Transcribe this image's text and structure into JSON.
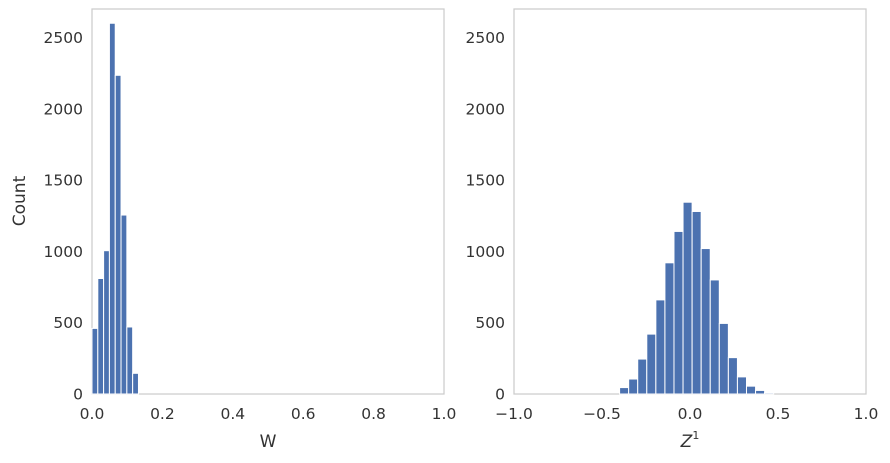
{
  "chart_data": [
    {
      "type": "bar",
      "subtype": "histogram",
      "xlabel": "W",
      "ylabel": "Count",
      "xlim": [
        0,
        1.0
      ],
      "ylim": [
        0,
        2700
      ],
      "xticks": [
        "0.0",
        "0.2",
        "0.4",
        "0.6",
        "0.8",
        "1.0"
      ],
      "yticks": [
        "0",
        "500",
        "1000",
        "1500",
        "2000",
        "2500"
      ],
      "grid": false,
      "color": "#4c72b0",
      "bin_width": 0.0165,
      "bin_starts": [
        0.0,
        0.0165,
        0.033,
        0.0495,
        0.066,
        0.0825,
        0.099,
        0.1155
      ],
      "counts": [
        460,
        810,
        1005,
        2600,
        2235,
        1255,
        470,
        145
      ]
    },
    {
      "type": "bar",
      "subtype": "histogram",
      "xlabel": "Z",
      "xlabel_sup": "1",
      "ylabel": "",
      "xlim": [
        -1.0,
        1.0
      ],
      "ylim": [
        0,
        2700
      ],
      "xticks": [
        "−1.0",
        "−0.5",
        "0.0",
        "0.5",
        "1.0"
      ],
      "yticks": [
        "0",
        "500",
        "1000",
        "1500",
        "2000",
        "2500"
      ],
      "grid": false,
      "color": "#4c72b0",
      "bin_width": 0.0515,
      "bin_starts": [
        -0.4,
        -0.3485,
        -0.297,
        -0.2455,
        -0.194,
        -0.1425,
        -0.091,
        -0.0395,
        0.012,
        0.0635,
        0.115,
        0.1665,
        0.218,
        0.2695,
        0.321,
        0.3725,
        0.424
      ],
      "counts": [
        45,
        105,
        245,
        420,
        660,
        920,
        1140,
        1345,
        1280,
        1020,
        800,
        495,
        255,
        120,
        55,
        25,
        8
      ]
    }
  ]
}
